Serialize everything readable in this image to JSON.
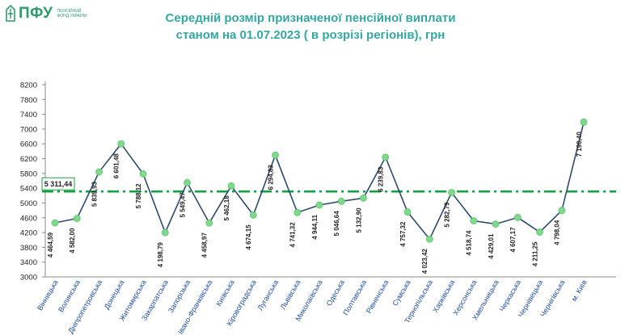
{
  "logo": {
    "text": "ПФУ",
    "sub": "Пенсійний фонд України"
  },
  "chart_data": {
    "type": "line",
    "title": "Середній розмір призначеної пенсійної виплати",
    "subtitle": "станом на 01.07.2023 ( в розрізі регіонів), грн",
    "categories": [
      "Вінницька",
      "Волинська",
      "Дніпропетровська",
      "Донецька",
      "Житомирська",
      "Закарпатська",
      "Запорізька",
      "Івано-Франківська",
      "Київська",
      "Кіровоградська",
      "Луганська",
      "Львівська",
      "Миколаївська",
      "Одеська",
      "Полтавська",
      "Рівненська",
      "Сумська",
      "Тернопільська",
      "Харківська",
      "Херсонська",
      "Хмельницька",
      "Черкаська",
      "Чернівецька",
      "Чернігівська",
      "м. Київ"
    ],
    "values": [
      4464.59,
      4582.0,
      5839.93,
      6601.48,
      5788.12,
      4198.79,
      5549.47,
      4458.97,
      5462.18,
      4674.15,
      6294.83,
      4741.32,
      4944.11,
      5046.64,
      5132.9,
      6239.83,
      4757.32,
      4023.42,
      5282.79,
      4518.74,
      4429.01,
      4607.17,
      4211.25,
      4798.04,
      7190.4
    ],
    "value_labels": [
      "4 464,59",
      "4 582,00",
      "5 839,93",
      "6 601,48",
      "5 788,12",
      "4 198,79",
      "5 549,47",
      "4 458,97",
      "5 462,18",
      "4 674,15",
      "6 294,83",
      "4 741,32",
      "4 944,11",
      "5 046,64",
      "5 132,90",
      "6 239,83",
      "4 757,32",
      "4 023,42",
      "5 282,79",
      "4 518,74",
      "4 429,01",
      "4 607,17",
      "4 211,25",
      "4 798,04",
      "7 190,40"
    ],
    "average": {
      "value": 5311.44,
      "label": "5 311,44"
    },
    "yticks": [
      3000,
      3400,
      3800,
      4200,
      4600,
      5000,
      5400,
      5800,
      6200,
      6600,
      7000,
      7400,
      7800,
      8200
    ],
    "ylim": [
      3000,
      8200
    ],
    "xlabel": "",
    "ylabel": "",
    "grid": false,
    "colors": {
      "line": "#2e4a6e",
      "marker": "#7fd98b",
      "average": "#13a33e",
      "title": "#34a7a2",
      "xtick": "#1f4fa0"
    }
  }
}
